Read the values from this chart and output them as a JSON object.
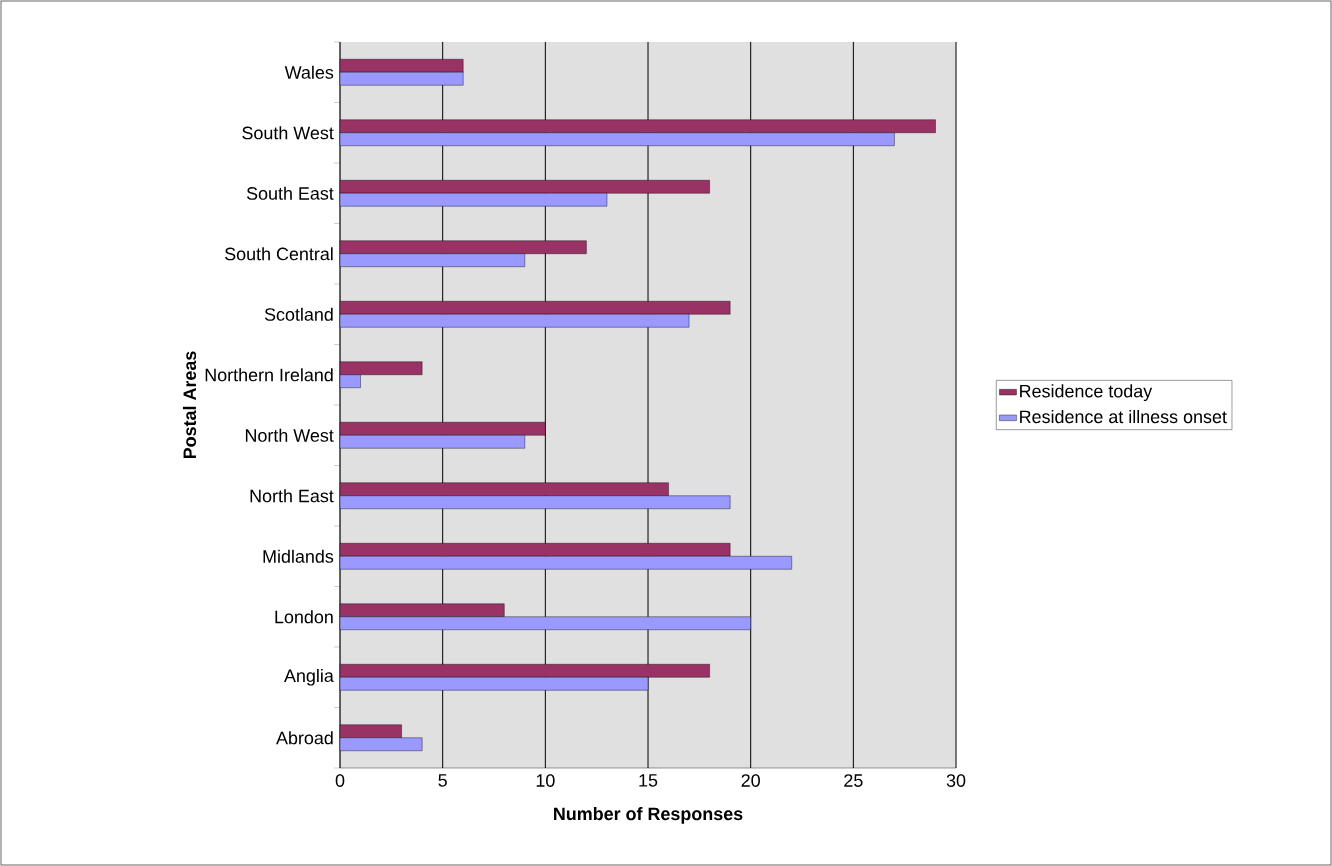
{
  "chart_data": {
    "type": "bar",
    "orientation": "horizontal",
    "xlabel": "Number of Responses",
    "ylabel": "Postal Areas",
    "categories": [
      "Wales",
      "South West",
      "South East",
      "South Central",
      "Scotland",
      "Northern Ireland",
      "North West",
      "North East",
      "Midlands",
      "London",
      "Anglia",
      "Abroad"
    ],
    "series": [
      {
        "name": "Residence today",
        "color": "#993366",
        "values": [
          6,
          29,
          18,
          12,
          19,
          4,
          10,
          16,
          19,
          8,
          18,
          3
        ]
      },
      {
        "name": "Residence at illness onset",
        "color": "#9999ff",
        "values": [
          6,
          27,
          13,
          9,
          17,
          1,
          9,
          19,
          22,
          20,
          15,
          4
        ]
      }
    ],
    "xlim": [
      0,
      30
    ],
    "xticks": [
      0,
      5,
      10,
      15,
      20,
      25,
      30
    ],
    "grid": "x",
    "legend": "right"
  }
}
